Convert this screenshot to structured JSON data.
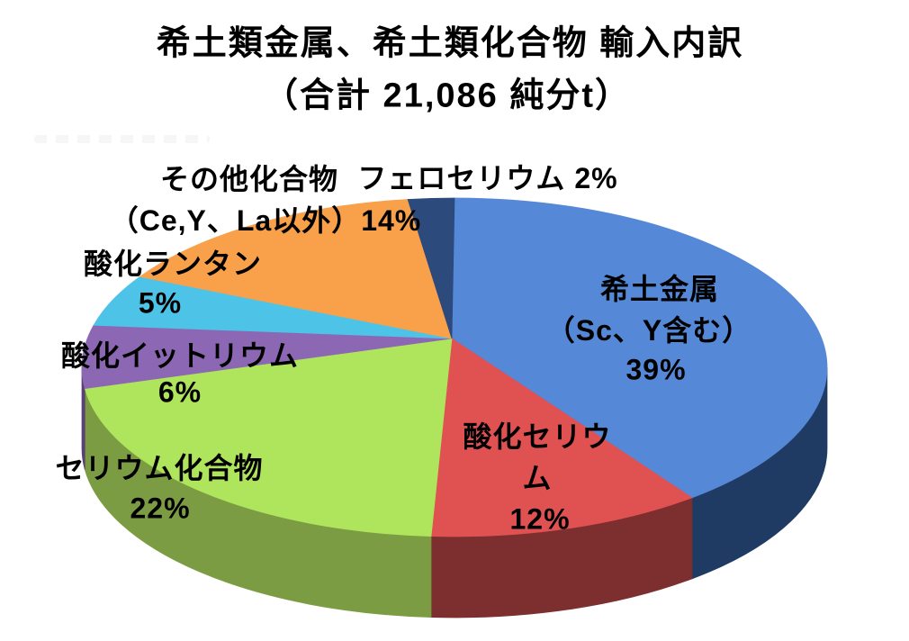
{
  "title": {
    "line1": "希土類金属、希土類化合物 輸入内訳",
    "line2": "（合計 21,086 純分t）"
  },
  "chart_data": {
    "type": "pie",
    "style": "3d",
    "title": "希土類金属、希土類化合物 輸入内訳",
    "subtitle": "（合計 21,086 純分t）",
    "total_value": "21,086",
    "total_unit": "純分t",
    "start_angle_deg": 0,
    "direction": "clockwise",
    "legend": "none",
    "slices": [
      {
        "label": "希土金属（Sc、Y含む）",
        "pct": 39,
        "color": "#5588D6",
        "side_color": "#1F3A63"
      },
      {
        "label": "酸化セリウム",
        "pct": 12,
        "color": "#E05152",
        "side_color": "#7D2E2F"
      },
      {
        "label": "セリウム化合物",
        "pct": 22,
        "color": "#AEE55C",
        "side_color": "#7C9C44"
      },
      {
        "label": "酸化イットリウム",
        "pct": 6,
        "color": "#8C68B4",
        "side_color": "#5A4175"
      },
      {
        "label": "酸化ランタン",
        "pct": 5,
        "color": "#4EC3E8",
        "side_color": "#2E8CAD"
      },
      {
        "label": "その他化合物（Ce,Y、La以外）",
        "pct": 14,
        "color": "#F9A04A",
        "side_color": "#B06A20"
      },
      {
        "label": "フェロセリウム",
        "pct": 2,
        "color": "#2C4A7C",
        "side_color": "#1A2F55"
      }
    ]
  },
  "callouts": {
    "other_compounds": {
      "line1": "その他化合物",
      "line2": "（Ce,Y、La以外）14%"
    },
    "ferrocerium": {
      "line1": "フェロセリウム 2%"
    },
    "lanthanum_oxide": {
      "line1": "酸化ランタン",
      "line2": "5%"
    },
    "yttrium_oxide": {
      "line1": "酸化イットリウム",
      "line2": "6%"
    },
    "cerium_compounds": {
      "line1": "セリウム化合物",
      "line2": "22%"
    },
    "rare_earth_metal": {
      "line1": "希土金属",
      "line2": "（Sc、Y含む）",
      "line3": "39%"
    },
    "cerium_oxide": {
      "line1": "酸化セリウ",
      "line2": "ム",
      "line3": "12%"
    }
  },
  "colors": {
    "background": "#FFFFFF",
    "text": "#000000"
  }
}
